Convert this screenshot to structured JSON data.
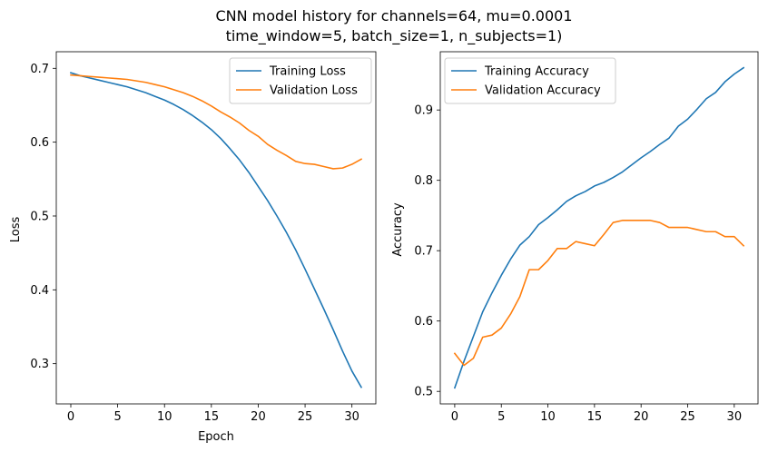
{
  "figure": {
    "title_line1": "CNN model history for channels=64, mu=0.0001",
    "title_line2": "time_window=5, batch_size=1, n_subjects=1)"
  },
  "colors": {
    "training": "#1f77b4",
    "validation": "#ff7f0e"
  },
  "chart_data": [
    {
      "type": "line",
      "xlabel": "Epoch",
      "ylabel": "Loss",
      "xlim": [
        -1.55,
        32.55
      ],
      "ylim": [
        0.2455,
        0.7225
      ],
      "xticks": [
        0,
        5,
        10,
        15,
        20,
        25,
        30
      ],
      "yticks": [
        0.3,
        0.4,
        0.5,
        0.6,
        0.7
      ],
      "grid": false,
      "legend_position": "upper right",
      "x": [
        0,
        1,
        2,
        3,
        4,
        5,
        6,
        7,
        8,
        9,
        10,
        11,
        12,
        13,
        14,
        15,
        16,
        17,
        18,
        19,
        20,
        21,
        22,
        23,
        24,
        25,
        26,
        27,
        28,
        29,
        30,
        31
      ],
      "series": [
        {
          "name": "Training Loss",
          "color": "#1f77b4",
          "values": [
            0.694,
            0.69,
            0.687,
            0.684,
            0.681,
            0.678,
            0.675,
            0.671,
            0.667,
            0.662,
            0.657,
            0.651,
            0.644,
            0.636,
            0.627,
            0.617,
            0.605,
            0.591,
            0.576,
            0.559,
            0.54,
            0.521,
            0.5,
            0.478,
            0.454,
            0.428,
            0.401,
            0.374,
            0.346,
            0.317,
            0.29,
            0.268
          ]
        },
        {
          "name": "Validation Loss",
          "color": "#ff7f0e",
          "values": [
            0.691,
            0.69,
            0.689,
            0.688,
            0.687,
            0.686,
            0.685,
            0.683,
            0.681,
            0.678,
            0.675,
            0.671,
            0.667,
            0.662,
            0.656,
            0.649,
            0.641,
            0.634,
            0.626,
            0.616,
            0.608,
            0.597,
            0.589,
            0.582,
            0.574,
            0.571,
            0.57,
            0.567,
            0.564,
            0.565,
            0.57,
            0.577
          ]
        }
      ]
    },
    {
      "type": "line",
      "xlabel": "",
      "ylabel": "Accuracy",
      "xlim": [
        -1.55,
        32.55
      ],
      "ylim": [
        0.4822,
        0.9828
      ],
      "xticks": [
        0,
        5,
        10,
        15,
        20,
        25,
        30
      ],
      "yticks": [
        0.5,
        0.6,
        0.7,
        0.8,
        0.9
      ],
      "grid": false,
      "legend_position": "upper left",
      "x": [
        0,
        1,
        2,
        3,
        4,
        5,
        6,
        7,
        8,
        9,
        10,
        11,
        12,
        13,
        14,
        15,
        16,
        17,
        18,
        19,
        20,
        21,
        22,
        23,
        24,
        25,
        26,
        27,
        28,
        29,
        30,
        31
      ],
      "series": [
        {
          "name": "Training Accuracy",
          "color": "#1f77b4",
          "values": [
            0.505,
            0.543,
            0.578,
            0.613,
            0.64,
            0.665,
            0.688,
            0.708,
            0.72,
            0.737,
            0.747,
            0.758,
            0.77,
            0.778,
            0.784,
            0.792,
            0.797,
            0.804,
            0.812,
            0.822,
            0.832,
            0.841,
            0.851,
            0.86,
            0.877,
            0.887,
            0.901,
            0.916,
            0.925,
            0.94,
            0.951,
            0.96
          ]
        },
        {
          "name": "Validation Accuracy",
          "color": "#ff7f0e",
          "values": [
            0.554,
            0.537,
            0.547,
            0.577,
            0.58,
            0.59,
            0.61,
            0.635,
            0.673,
            0.673,
            0.686,
            0.703,
            0.703,
            0.713,
            0.71,
            0.707,
            0.723,
            0.74,
            0.743,
            0.743,
            0.743,
            0.743,
            0.74,
            0.733,
            0.733,
            0.733,
            0.73,
            0.727,
            0.727,
            0.72,
            0.72,
            0.707
          ]
        }
      ]
    }
  ]
}
